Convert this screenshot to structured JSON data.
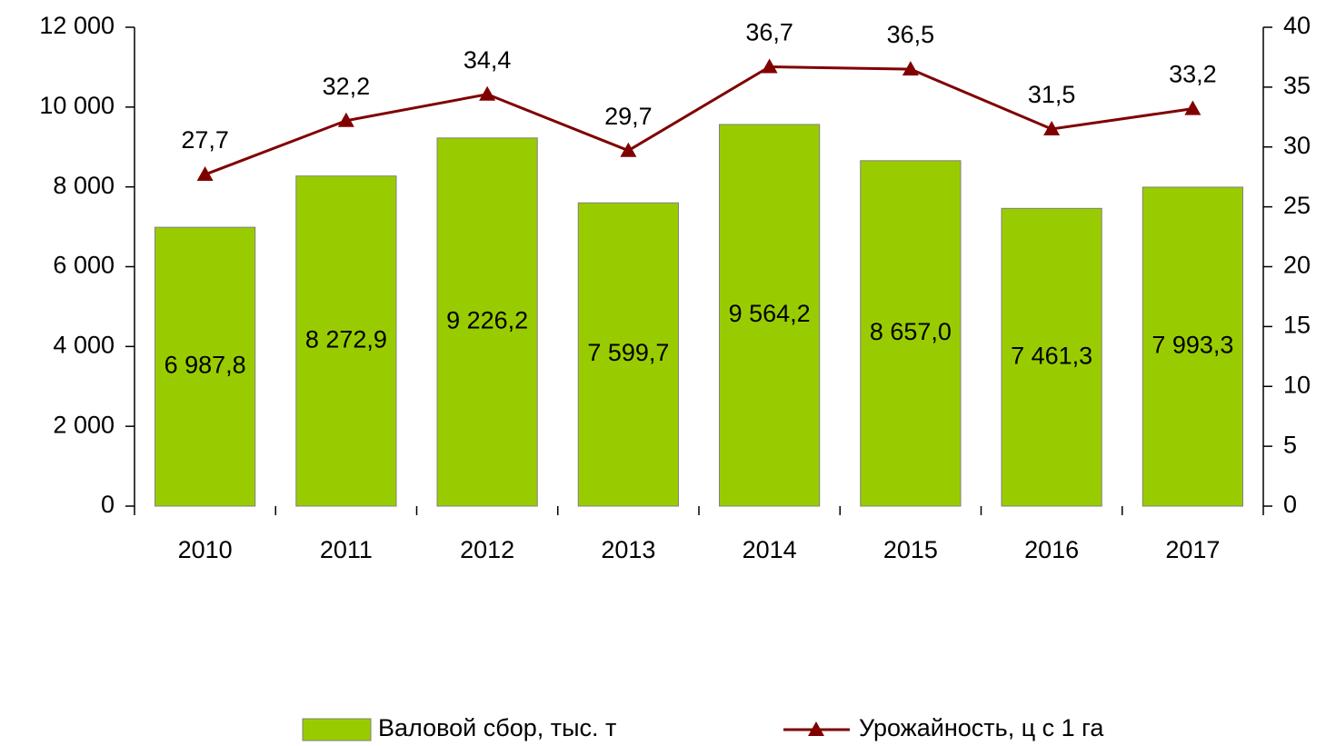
{
  "chart_data": {
    "type": "bar-line",
    "categories": [
      "2010",
      "2011",
      "2012",
      "2013",
      "2014",
      "2015",
      "2016",
      "2017"
    ],
    "series": [
      {
        "name": "Валовой сбор, тыс. т",
        "type": "bar",
        "color": "#99cc00",
        "values": [
          6987.8,
          8272.9,
          9226.2,
          7599.7,
          9564.2,
          8657.0,
          7461.3,
          7993.3
        ],
        "value_labels": [
          "6 987,8",
          "8 272,9",
          "9 226,2",
          "7 599,7",
          "9 564,2",
          "8 657,0",
          "7 461,3",
          "7 993,3"
        ]
      },
      {
        "name": "Урожайность, ц с 1 га",
        "type": "line",
        "axis": "y2",
        "color": "#800000",
        "values": [
          27.7,
          32.2,
          34.4,
          29.7,
          36.7,
          36.5,
          31.5,
          33.2
        ],
        "value_labels": [
          "27,7",
          "32,2",
          "34,4",
          "29,7",
          "36,7",
          "36,5",
          "31,5",
          "33,2"
        ]
      }
    ],
    "ylim": [
      0,
      12000
    ],
    "yticks": [
      0,
      {
        "value": 2000,
        "label": "2 000"
      },
      {
        "value": 4000,
        "label": "4 000"
      },
      {
        "value": 6000,
        "label": "6 000"
      },
      {
        "value": 8000,
        "label": "8 000"
      },
      {
        "value": 10000,
        "label": "10 000"
      },
      {
        "value": 12000,
        "label": "12 000"
      }
    ],
    "y2lim": [
      0,
      40
    ],
    "y2ticks": [
      0,
      5,
      10,
      15,
      20,
      25,
      30,
      35,
      40
    ],
    "legend": "bottom"
  }
}
